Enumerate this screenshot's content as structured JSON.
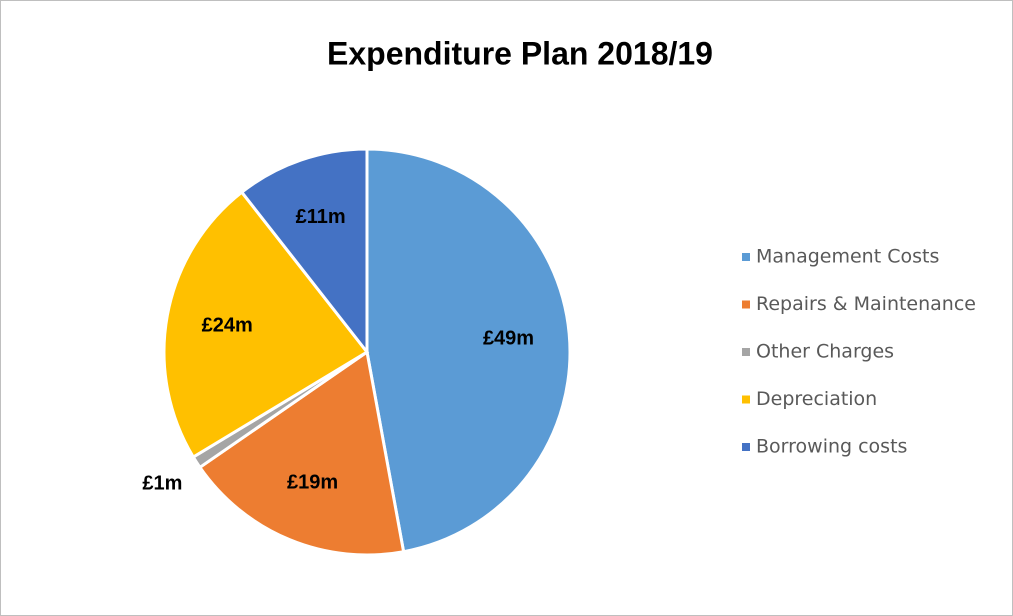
{
  "chart_data": {
    "type": "pie",
    "title": "Expenditure Plan 2018/19",
    "categories": [
      "Management Costs",
      "Repairs & Maintenance",
      "Other Charges",
      "Depreciation",
      "Borrowing costs"
    ],
    "values": [
      49,
      19,
      1,
      24,
      11
    ],
    "value_labels": [
      "£49m",
      "£19m",
      "£1m",
      "£24m",
      "£11m"
    ],
    "colors": [
      "#5b9bd5",
      "#ed7d31",
      "#a5a5a5",
      "#ffc000",
      "#4472c4"
    ],
    "legend": "right"
  }
}
